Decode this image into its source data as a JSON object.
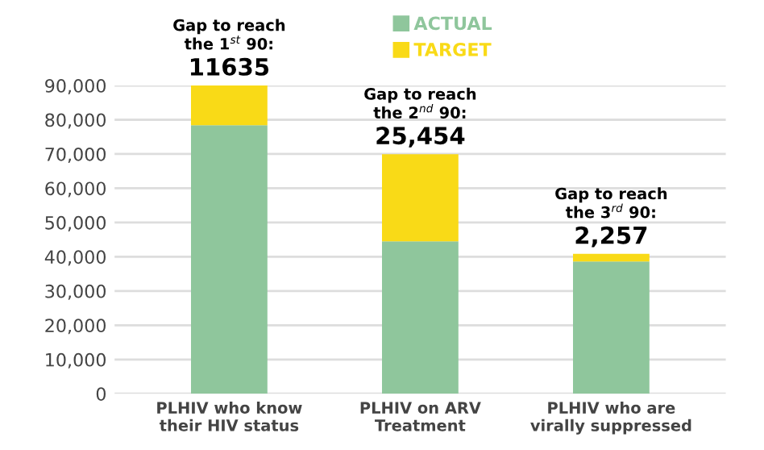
{
  "chart_data": {
    "type": "bar",
    "stacked": true,
    "categories": [
      "PLHIV who know\ntheir HIV status",
      "PLHIV on ARV\nTreatment",
      "PLHIV who are\nvirally suppressed"
    ],
    "series": [
      {
        "name": "ACTUAL",
        "color": "#8fc69c",
        "values": [
          78400,
          44500,
          38600
        ]
      },
      {
        "name": "TARGET",
        "color": "#f9da17",
        "values": [
          11635,
          25454,
          2257
        ],
        "value_labels": [
          "11635",
          "25,454",
          "2,257"
        ]
      }
    ],
    "annotations": [
      {
        "text": "Gap to reach\nthe 1$^{st}$ 90:",
        "x": "PLHIV who know\ntheir HIV status",
        "y": 90035
      },
      {
        "text": "Gap to reach\nthe 2$^{nd}$ 90:",
        "x": "PLHIV on ARV\nTreatment",
        "y": 69954
      },
      {
        "text": "Gap to reach\nthe 3$^{rd}$ 90:",
        "x": "PLHIV who are\nvirally suppressed",
        "y": 40857
      }
    ],
    "ylim": [
      0,
      90000
    ],
    "yticks": [
      {
        "value": 0,
        "label": "0"
      },
      {
        "value": 10000,
        "label": "10,000"
      },
      {
        "value": 20000,
        "label": "20,000"
      },
      {
        "value": 30000,
        "label": "30,000"
      },
      {
        "value": 40000,
        "label": "40,000"
      },
      {
        "value": 50000,
        "label": "50,000"
      },
      {
        "value": 60000,
        "label": "60,000"
      },
      {
        "value": 70000,
        "label": "70,000"
      },
      {
        "value": 80000,
        "label": "80,000"
      },
      {
        "value": 90000,
        "label": "90,000"
      }
    ],
    "grid": "y",
    "legend": "top"
  }
}
